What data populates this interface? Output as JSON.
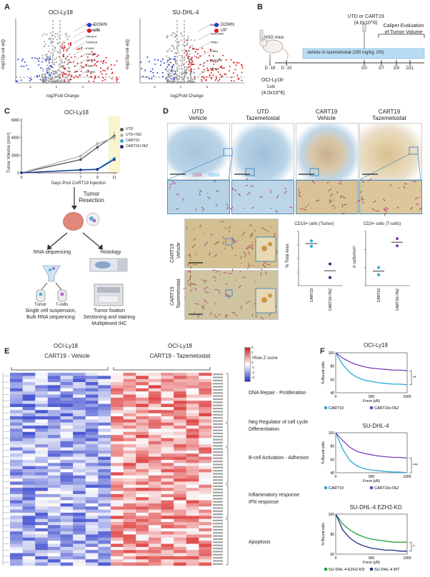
{
  "panels": {
    "A": "A",
    "B": "B",
    "C": "C",
    "D": "D",
    "E": "E",
    "F": "F"
  },
  "panelA": {
    "left_title": "OCI-Ly18",
    "right_title": "SU-DHL-4",
    "xlabel": "log2Fold Change",
    "ylabel": "-log10(p val adj)",
    "legend": [
      "DOWN",
      "UP"
    ],
    "colors": {
      "down": "#1f3fd0",
      "up": "#d81e1e",
      "ns": "#9a9a9a"
    },
    "left_genes": [
      "KDSR8",
      "TNFRSF18",
      "TNFSF4",
      "CDKN1A",
      "ICAM1",
      "CXCL10",
      "CXCL9",
      "CD80",
      "EPHB2"
    ],
    "right_genes": [
      "BACH2",
      "CEACAM1",
      "TRIB1",
      "IL3RA",
      "CEACAM",
      "EPHB2"
    ],
    "left_xticks": [
      "-5",
      "0",
      "5"
    ],
    "right_xticks": [
      "-5",
      "0",
      "5"
    ]
  },
  "panelB": {
    "mouse_label": "NSG mice",
    "treat_label": "UTD or CART19",
    "treat_dose": "(4.0x10^6)",
    "caliper": "Caliper Evaluation",
    "caliper2": "of Tumor Volume",
    "bar_text": "vehicle or tazemetostat (150 mg/kg; OS)",
    "days": [
      "D -18",
      "D -15",
      "D0",
      "D7",
      "D9",
      "D11"
    ],
    "tumor_line1": "OCI-Ly18-",
    "tumor_line2": "Luc",
    "tumor_line3": "(4.0x10^6)"
  },
  "panelC": {
    "title": "OCI-Ly18",
    "ylabel": "Tumor Volume (mm³)",
    "xlabel": "Days Post CART19 Injection",
    "yticks": [
      "0",
      "2000",
      "4000",
      "6000"
    ],
    "xticks": [
      "0",
      "7",
      "9",
      "11"
    ],
    "resection": "Tumor",
    "resection2": "Resection",
    "rna": "RNA sequencing",
    "histology": "Histology",
    "tumor_cell": "Tumor",
    "tcell": "T-cells",
    "rna_sub1": "Single cell suspension,",
    "rna_sub2": "Bulk RNA sequencing",
    "hist_sub1": "Tumor fixation",
    "hist_sub2": "Sectioning and staining",
    "hist_sub3": "Multiplexed IHC",
    "chart_data": {
      "type": "line",
      "title": "OCI-Ly18",
      "xlabel": "Days Post CART19 Injection",
      "ylabel": "Tumor Volume (mm³)",
      "ylim": [
        0,
        6000
      ],
      "x": [
        0,
        7,
        9,
        11
      ],
      "series": [
        {
          "name": "UTD",
          "color": "#555555",
          "values": [
            0,
            1500,
            2900,
            4200
          ]
        },
        {
          "name": "UTD+TAZ",
          "color": "#b0b0b0",
          "values": [
            0,
            1900,
            3300,
            4000
          ]
        },
        {
          "name": "CART19",
          "color": "#2aa8d8",
          "values": [
            0,
            350,
            420,
            1650
          ]
        },
        {
          "name": "CART19+TAZ",
          "color": "#1a2f8a",
          "values": [
            0,
            320,
            380,
            1500
          ]
        }
      ]
    }
  },
  "panelD": {
    "cols": [
      {
        "l1": "UTD",
        "l2": "Vehicle"
      },
      {
        "l1": "UTD",
        "l2": "Tazemetostat"
      },
      {
        "l1": "CART19",
        "l2": "Vehicle"
      },
      {
        "l1": "CART19",
        "l2": "Tazemetostat"
      }
    ],
    "cd3": "CD3",
    "cd19": "CD19",
    "row1": "CART19",
    "row1b": "Vehicle",
    "row2": "CART19",
    "row2b": "Tazemetostat",
    "plot1_title": "CD19+ cells (Tumor)",
    "plot1_ylabel": "% Total Area",
    "plot2_title": "CD3+ cells (T-cells)",
    "plot2_ylabel": "# cells/mm²",
    "xcats": [
      "CART19",
      "CART19+TAZ"
    ],
    "chart_data": [
      {
        "type": "scatter",
        "title": "CD19+ cells (Tumor)",
        "ylabel": "% Total Area",
        "categories": [
          "CART19",
          "CART19+TAZ"
        ],
        "points": [
          {
            "cat": "CART19",
            "values": [
              3.3,
              2.9
            ],
            "color": "#2aa8d8"
          },
          {
            "cat": "CART19+TAZ",
            "values": [
              1.6,
              0.6
            ],
            "color": "#1a2f8a"
          }
        ]
      },
      {
        "type": "scatter",
        "title": "CD3+ cells (T-cells)",
        "ylabel": "# cells/mm²",
        "categories": [
          "CART19",
          "CART19+TAZ"
        ],
        "points": [
          {
            "cat": "CART19",
            "values": [
              1.0,
              0.6
            ],
            "color": "#2aa8d8"
          },
          {
            "cat": "CART19+TAZ",
            "values": [
              2.6,
              2.2
            ],
            "color": "#7a3fb8"
          }
        ]
      }
    ]
  },
  "panelE": {
    "left_cell": "OCI-Ly18",
    "right_cell": "OCI-Ly18",
    "left_group": "CART19 - Vehicle",
    "right_group": "CART19 - Tazemetostat",
    "scale_label": "Row Z score",
    "scale_ticks": [
      "3",
      "2",
      "1",
      "0",
      "-1",
      "-2",
      "-3"
    ],
    "categories": [
      "DNA Repair - Proliferation",
      "Neg Regulator of cell cycle",
      "Differentiation",
      "B-cell Activation - Adhesion",
      "Inflammatory response",
      "IFN response",
      "Apoptosis"
    ]
  },
  "panelF": {
    "plots": [
      {
        "title": "OCI-Ly18",
        "sig": "**",
        "legend": [
          "CART19",
          "CART19+TAZ"
        ],
        "colors": [
          "#2aa8d8",
          "#7a3fb8"
        ]
      },
      {
        "title": "SU-DHL-4",
        "sig": "***",
        "legend": [
          "CART19",
          "CART19+TAZ"
        ],
        "colors": [
          "#2aa8d8",
          "#7a3fb8"
        ]
      },
      {
        "title": "SU-DHL-4 EZH2-KD",
        "sig": "*",
        "legend": [
          "SU-DHL-4 EZH2-KD",
          "SU-DHL-4 WT"
        ],
        "colors": [
          "#1fa33a",
          "#1a2f8a"
        ]
      }
    ],
    "ylabel": "% Bound cells",
    "xlabel": "Force (pN)",
    "xticks": [
      "0",
      "500",
      "1000"
    ],
    "yticks_a": [
      "40",
      "60",
      "80",
      "100"
    ],
    "yticks_c": [
      "60",
      "80",
      "100"
    ],
    "chart_data": [
      {
        "type": "line",
        "title": "OCI-Ly18",
        "xlabel": "Force (pN)",
        "ylabel": "% Bound cells",
        "xlim": [
          0,
          1000
        ],
        "ylim": [
          40,
          100
        ],
        "x": [
          0,
          100,
          200,
          300,
          400,
          500,
          600,
          700,
          800,
          900,
          1000
        ],
        "series": [
          {
            "name": "CART19",
            "values": [
              100,
              82,
              70,
              63,
              59,
              57,
              55,
              54,
              53,
              53,
              52
            ]
          },
          {
            "name": "CART19+TAZ",
            "values": [
              100,
              92,
              86,
              82,
              79,
              77,
              76,
              75,
              74,
              74,
              73
            ]
          }
        ]
      },
      {
        "type": "line",
        "title": "SU-DHL-4",
        "xlabel": "Force (pN)",
        "ylabel": "% Bound cells",
        "xlim": [
          0,
          1000
        ],
        "ylim": [
          40,
          100
        ],
        "x": [
          0,
          100,
          200,
          300,
          400,
          500,
          600,
          700,
          800,
          900,
          1000
        ],
        "series": [
          {
            "name": "CART19",
            "values": [
              100,
              75,
              58,
              50,
              46,
              44,
              43,
              42,
              41,
              41,
              40
            ]
          },
          {
            "name": "CART19+TAZ",
            "values": [
              100,
              88,
              78,
              72,
              69,
              67,
              65,
              64,
              63,
              63,
              62
            ]
          }
        ]
      },
      {
        "type": "line",
        "title": "SU-DHL-4 EZH2-KD",
        "xlabel": "Force (pN)",
        "ylabel": "% Bound cells",
        "xlim": [
          0,
          1000
        ],
        "ylim": [
          60,
          100
        ],
        "x": [
          0,
          100,
          200,
          300,
          400,
          500,
          600,
          700,
          800,
          900,
          1000
        ],
        "series": [
          {
            "name": "SU-DHL-4 EZH2-KD",
            "values": [
              100,
              90,
              84,
              80,
              77,
              75,
              74,
              73,
              72,
              72,
              72
            ]
          },
          {
            "name": "SU-DHL-4 WT",
            "values": [
              100,
              84,
              76,
              71,
              68,
              66,
              65,
              64,
              64,
              63,
              63
            ]
          }
        ]
      }
    ]
  }
}
